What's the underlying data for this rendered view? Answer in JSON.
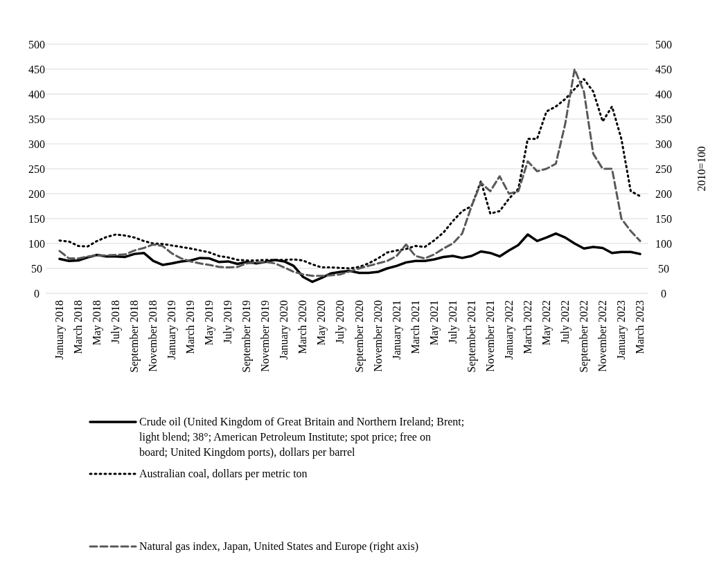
{
  "chart_data": {
    "type": "line",
    "categories": [
      "January 2018",
      null,
      "March 2018",
      null,
      "May 2018",
      null,
      "July 2018",
      null,
      "September 2018",
      null,
      "November 2018",
      null,
      "January 2019",
      null,
      "March 2019",
      null,
      "May 2019",
      null,
      "July 2019",
      null,
      "September 2019",
      null,
      "November 2019",
      null,
      "January 2020",
      null,
      "March 2020",
      null,
      "May 2020",
      null,
      "July 2020",
      null,
      "September 2020",
      null,
      "November 2020",
      null,
      "January 2021",
      null,
      "March 2021",
      null,
      "May 2021",
      null,
      "July 2021",
      null,
      "September 2021",
      null,
      "November 2021",
      null,
      "January 2022",
      null,
      "March 2022",
      null,
      "May 2022",
      null,
      "July 2022",
      null,
      "September 2022",
      null,
      "November 2022",
      null,
      "January 2023",
      null,
      "March 2023"
    ],
    "series": [
      {
        "name": "Crude oil (United Kingdom of Great Britain and Northern Ireland; Brent; light blend; 38°; American Petroleum Institute; spot price; free on board; United Kingdom ports), dollars per barrel",
        "color": "#000000",
        "line_style": "solid",
        "values": [
          69,
          65,
          66,
          72,
          77,
          74,
          74,
          73,
          79,
          81,
          65,
          57,
          60,
          64,
          66,
          71,
          70,
          63,
          64,
          59,
          63,
          60,
          63,
          67,
          64,
          55,
          33,
          23,
          31,
          40,
          43,
          45,
          41,
          41,
          43,
          50,
          55,
          62,
          65,
          65,
          68,
          73,
          75,
          71,
          75,
          84,
          81,
          74,
          86,
          97,
          118,
          105,
          112,
          120,
          112,
          100,
          90,
          93,
          91,
          81,
          83,
          83,
          79
        ]
      },
      {
        "name": "Australian coal, dollars per metric ton",
        "color": "#000000",
        "line_style": "dotted",
        "values": [
          106,
          104,
          95,
          94,
          105,
          113,
          118,
          116,
          112,
          105,
          100,
          99,
          96,
          93,
          90,
          86,
          82,
          75,
          72,
          67,
          66,
          66,
          67,
          67,
          67,
          68,
          66,
          58,
          52,
          52,
          51,
          50,
          53,
          60,
          70,
          82,
          86,
          89,
          95,
          93,
          106,
          122,
          145,
          165,
          175,
          225,
          160,
          165,
          190,
          210,
          310,
          310,
          365,
          375,
          390,
          410,
          430,
          405,
          345,
          375,
          310,
          205,
          195
        ]
      },
      {
        "name": "Natural gas index, Japan, United States and Europe (right axis)",
        "color": "#595959",
        "line_style": "dashed",
        "axis": "y2",
        "values": [
          85,
          70,
          70,
          74,
          76,
          76,
          77,
          78,
          86,
          91,
          98,
          95,
          80,
          70,
          64,
          60,
          57,
          53,
          52,
          53,
          60,
          62,
          63,
          60,
          52,
          43,
          38,
          35,
          35,
          36,
          38,
          44,
          50,
          55,
          60,
          65,
          75,
          98,
          75,
          70,
          78,
          90,
          100,
          120,
          175,
          222,
          205,
          235,
          200,
          205,
          265,
          245,
          250,
          260,
          340,
          450,
          405,
          280,
          250,
          250,
          150,
          125,
          105
        ]
      }
    ],
    "ylim": [
      0,
      500
    ],
    "yticks": [
      0,
      50,
      100,
      150,
      200,
      250,
      300,
      350,
      400,
      450,
      500
    ],
    "y2lim": [
      0,
      500
    ],
    "y2ticks": [
      0,
      50,
      100,
      150,
      200,
      250,
      300,
      350,
      400,
      450,
      500
    ],
    "y2label": "2010=100",
    "grid": "y",
    "legend": "bottom",
    "marker": "none"
  }
}
